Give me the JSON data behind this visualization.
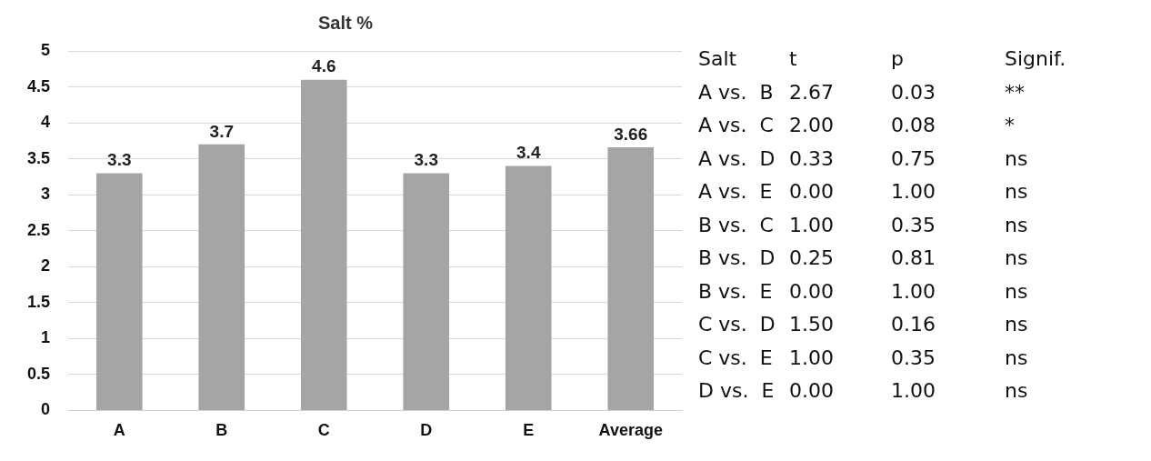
{
  "chart_data": [
    {
      "type": "bar",
      "title": "Salt %",
      "categories": [
        "A",
        "B",
        "C",
        "D",
        "E",
        "Average"
      ],
      "values": [
        3.3,
        3.7,
        4.6,
        3.3,
        3.4,
        3.66
      ],
      "color": "#a5a5a5",
      "ylim": [
        0,
        5
      ],
      "yticks": [
        0,
        0.5,
        1,
        1.5,
        2,
        2.5,
        3,
        3.5,
        4,
        4.5,
        5
      ],
      "grid": "y",
      "data_labels": true
    },
    {
      "type": "other",
      "annotations": [
        "Salt",
        "t",
        "p",
        "Signif.",
        "A vs.  B",
        "2.67",
        "0.03",
        "**",
        "A vs.  C",
        "2.00",
        "0.08",
        "*",
        "A vs.  D",
        "0.33",
        "0.75",
        "ns",
        "A vs.  E",
        "0.00",
        "1.00",
        "ns",
        "B vs.  C",
        "1.00",
        "0.35",
        "ns",
        "B vs.  D",
        "0.25",
        "0.81",
        "ns",
        "B vs.  E",
        "0.00",
        "1.00",
        "ns",
        "C vs.  D",
        "1.50",
        "0.16",
        "ns",
        "C vs.  E",
        "1.00",
        "0.35",
        "ns",
        "D vs.  E",
        "0.00",
        "1.00",
        "ns"
      ]
    }
  ]
}
